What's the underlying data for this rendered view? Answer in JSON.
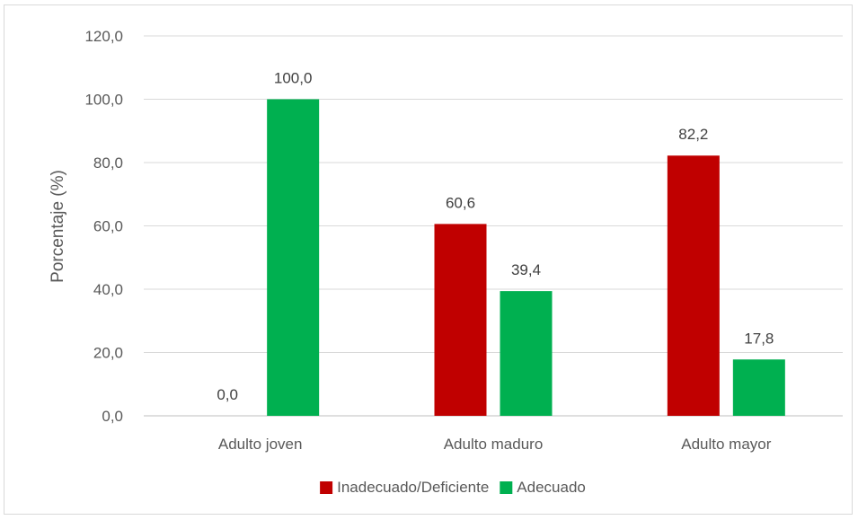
{
  "chart_data": {
    "type": "bar",
    "title": "",
    "xlabel": "",
    "ylabel": "Porcentaje (%)",
    "ylim": [
      0,
      120
    ],
    "yticks": [
      "0,0",
      "20,0",
      "40,0",
      "60,0",
      "80,0",
      "100,0",
      "120,0"
    ],
    "ytick_values": [
      0,
      20,
      40,
      60,
      80,
      100,
      120
    ],
    "categories": [
      "Adulto joven",
      "Adulto maduro",
      "Adulto mayor"
    ],
    "series": [
      {
        "name": "Inadecuado/Deficiente",
        "color": "#c00000",
        "values": [
          0.0,
          60.6,
          82.2
        ],
        "labels": [
          "0,0",
          "60,6",
          "82,2"
        ]
      },
      {
        "name": "Adecuado",
        "color": "#00b050",
        "values": [
          100.0,
          39.4,
          17.8
        ],
        "labels": [
          "100,0",
          "39,4",
          "17,8"
        ]
      }
    ],
    "grid": true,
    "legend_position": "bottom"
  }
}
